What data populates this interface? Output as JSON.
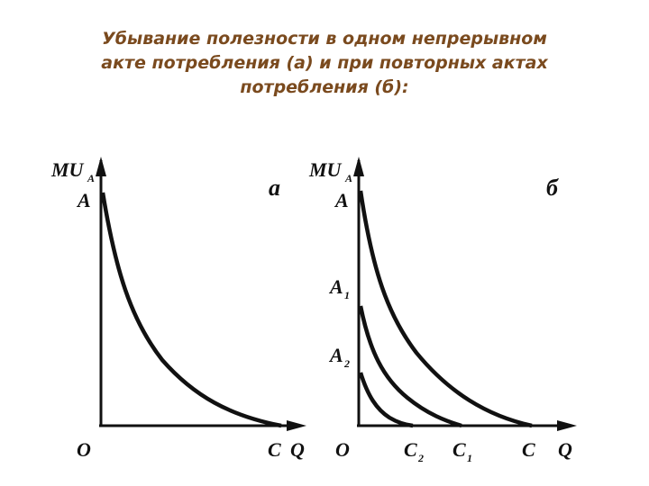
{
  "caption": {
    "line1": "Убывание полезности в одном непрерывном",
    "line2": "акте потребления (а) и при повторных актах",
    "line3": "потребления (б):"
  },
  "graph_a": {
    "panel_label": "a",
    "y_axis_label": "MU",
    "y_axis_sub": "A",
    "y_tick": "A",
    "origin": "O",
    "x_tick": "C",
    "x_axis_label": "Q"
  },
  "graph_b": {
    "panel_label": "б",
    "y_axis_label": "MU",
    "y_axis_sub": "A",
    "y_ticks": {
      "a": "A",
      "a1": "A",
      "a1_sub": "1",
      "a2": "A",
      "a2_sub": "2"
    },
    "origin": "O",
    "x_ticks": {
      "c2": "C",
      "c2_sub": "2",
      "c1": "C",
      "c1_sub": "1",
      "c": "C"
    },
    "x_axis_label": "Q"
  },
  "colors": {
    "caption": "#7a4a1e",
    "ink": "#111111"
  }
}
